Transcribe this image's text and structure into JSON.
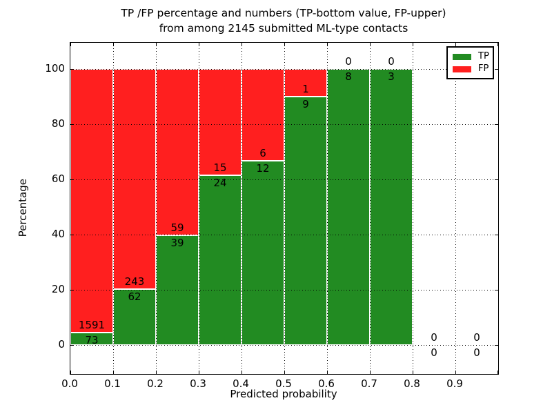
{
  "title": {
    "line1": "TP /FP percentage and numbers (TP-bottom value, FP-upper)",
    "line2": "from among 2145 submitted ML-type contacts"
  },
  "axes": {
    "xlabel": "Predicted probability",
    "ylabel": "Percentage",
    "x_tick_labels": [
      "0.0",
      "0.1",
      "0.2",
      "0.3",
      "0.4",
      "0.5",
      "0.6",
      "0.7",
      "0.8",
      "0.9"
    ],
    "y_tick_labels": [
      "0",
      "20",
      "40",
      "60",
      "80",
      "100"
    ],
    "y_tick_values": [
      0,
      20,
      40,
      60,
      80,
      100
    ]
  },
  "legend": {
    "items": [
      {
        "label": "TP",
        "color": "#228b22"
      },
      {
        "label": "FP",
        "color": "#ff1f1f"
      }
    ]
  },
  "colors": {
    "tp": "#228b22",
    "fp": "#ff1f1f",
    "grid": "#000000",
    "axis": "#000000",
    "background": "#ffffff"
  },
  "chart_data": {
    "type": "bar",
    "stacked": true,
    "unit": "percent",
    "title": "TP /FP percentage and numbers (TP-bottom value, FP-upper) from among 2145 submitted ML-type contacts",
    "xlabel": "Predicted probability",
    "ylabel": "Percentage",
    "total_contacts": 2145,
    "categories": [
      "0.0-0.1",
      "0.1-0.2",
      "0.2-0.3",
      "0.3-0.4",
      "0.4-0.5",
      "0.5-0.6",
      "0.6-0.7",
      "0.7-0.8",
      "0.8-0.9",
      "0.9-1.0"
    ],
    "x_bin_edges": [
      0.0,
      0.1,
      0.2,
      0.3,
      0.4,
      0.5,
      0.6,
      0.7,
      0.8,
      0.9,
      1.0
    ],
    "series": [
      {
        "name": "TP",
        "color": "#228b22",
        "counts": [
          73,
          62,
          39,
          24,
          12,
          9,
          8,
          3,
          0,
          0
        ],
        "percent": [
          4.39,
          20.33,
          39.8,
          61.54,
          66.67,
          90.0,
          100.0,
          100.0,
          0,
          0
        ]
      },
      {
        "name": "FP",
        "color": "#ff1f1f",
        "counts": [
          1591,
          243,
          59,
          15,
          6,
          1,
          0,
          0,
          0,
          0
        ],
        "percent": [
          95.61,
          79.67,
          60.2,
          38.46,
          33.33,
          10.0,
          0,
          0,
          0,
          0
        ]
      }
    ],
    "xlim": [
      0.0,
      1.0
    ],
    "ylim": [
      -10.5,
      109.5
    ],
    "grid": true,
    "grid_style": "dotted",
    "legend_position": "upper right",
    "annotation_rule": "TP count below stack boundary, FP count above stack boundary"
  }
}
